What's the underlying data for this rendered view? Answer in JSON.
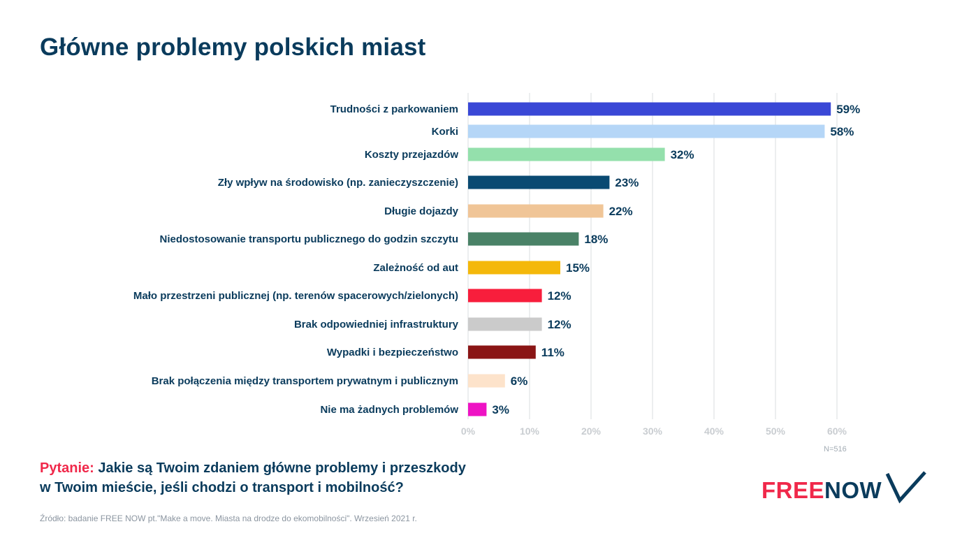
{
  "title": "Główne problemy polskich miast",
  "chart_data": {
    "type": "bar",
    "orientation": "horizontal",
    "categories": [
      "Trudności z parkowaniem",
      "Korki",
      "Koszty przejazdów",
      "Zły wpływ na środowisko (np. zanieczyszczenie)",
      "Długie dojazdy",
      "Niedostosowanie transportu publicznego do godzin szczytu",
      "Zależność od aut",
      "Mało przestrzeni publicznej (np. terenów spacerowych/zielonych)",
      "Brak odpowiedniej infrastruktury",
      "Wypadki i bezpieczeństwo",
      "Brak połączenia między transportem prywatnym i publicznym",
      "Nie ma żadnych problemów"
    ],
    "values": [
      59,
      58,
      32,
      23,
      22,
      18,
      15,
      12,
      12,
      11,
      6,
      3
    ],
    "value_labels": [
      "59%",
      "58%",
      "32%",
      "23%",
      "22%",
      "18%",
      "15%",
      "12%",
      "12%",
      "11%",
      "6%",
      "3%"
    ],
    "colors": [
      "#3a48d6",
      "#b5d6f7",
      "#94e0ac",
      "#0a4a72",
      "#f0c597",
      "#4a8267",
      "#f4b80a",
      "#f81e3c",
      "#cbcbcb",
      "#8a1515",
      "#fde3cb",
      "#ee13c4"
    ],
    "xlim": [
      0,
      60
    ],
    "xticks": [
      0,
      10,
      20,
      30,
      40,
      50,
      60
    ],
    "xtick_labels": [
      "0%",
      "10%",
      "20%",
      "30%",
      "40%",
      "50%",
      "60%"
    ],
    "grid": true,
    "n_note": "N=516"
  },
  "question": {
    "label": "Pytanie:",
    "line1": " Jakie są Twoim zdaniem główne problemy i przeszkody",
    "line2": "w Twoim mieście, jeśli chodzi o transport i mobilność?"
  },
  "source": "Źródło: badanie FREE NOW pt.\"Make a move. Miasta na drodze do ekomobilności\". Wrzesień 2021 r.",
  "logo": {
    "free": "FREE",
    "now": "NOW",
    "icon": "chevron-v-logo-icon",
    "colors": {
      "free": "#f0284a",
      "now": "#0a3b5c"
    }
  }
}
